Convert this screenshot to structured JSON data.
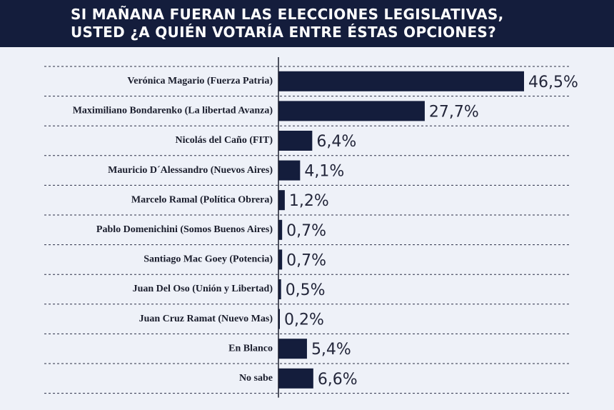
{
  "header": {
    "title": "SI MAÑANA FUERAN LAS ELECCIONES LEGISLATIVAS,\nUSTED ¿A QUIÉN VOTARÍA ENTRE ÉSTAS OPCIONES?"
  },
  "colors": {
    "header_bg": "#141d3c",
    "bar": "#141d3c",
    "background": "#eef1f8"
  },
  "chart_data": {
    "type": "bar",
    "orientation": "horizontal",
    "categories": [
      "Verónica Magario (Fuerza Patria)",
      "Maximiliano Bondarenko (La libertad Avanza)",
      "Nicolás del Caño (FIT)",
      "Mauricio D´Alessandro (Nuevos Aires)",
      "Marcelo Ramal (Política Obrera)",
      "Pablo Domenichini (Somos Buenos Aires)",
      "Santiago Mac Goey (Potencia)",
      "Juan Del Oso (Unión y Libertad)",
      "Juan Cruz Ramat (Nuevo Mas)",
      "En Blanco",
      "No sabe"
    ],
    "values": [
      46.5,
      27.7,
      6.4,
      4.1,
      1.2,
      0.7,
      0.7,
      0.5,
      0.2,
      5.4,
      6.6
    ],
    "value_labels": [
      "46,5%",
      "27,7%",
      "6,4%",
      "4,1%",
      "1,2%",
      "0,7%",
      "0,7%",
      "0,5%",
      "0,2%",
      "5,4%",
      "6,6%"
    ],
    "title": "SI MAÑANA FUERAN LAS ELECCIONES LEGISLATIVAS, USTED ¿A QUIÉN VOTARÍA ENTRE ÉSTAS OPCIONES?",
    "xlabel": "",
    "ylabel": "",
    "xlim": [
      0,
      46.5
    ],
    "grid": "dashed horizontal row separators",
    "legend": "none"
  }
}
